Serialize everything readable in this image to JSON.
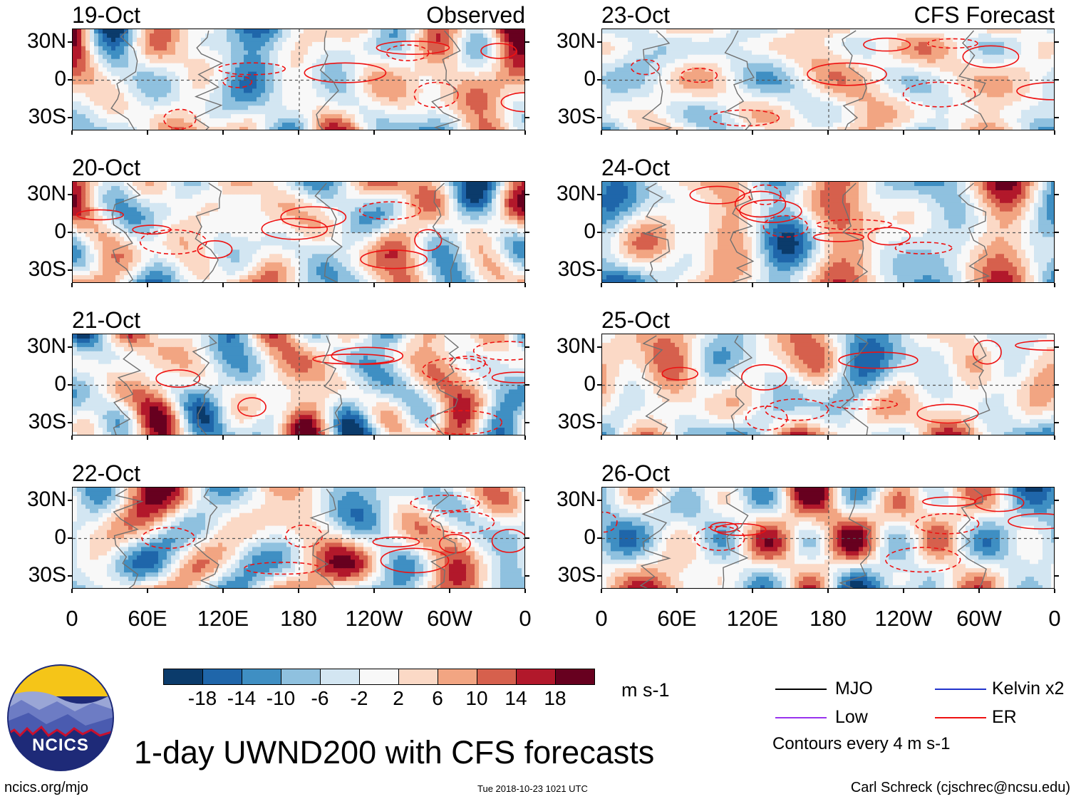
{
  "panels": [
    {
      "date": "19-Oct",
      "source": "Observed",
      "seed": 3
    },
    {
      "date": "20-Oct",
      "source": "",
      "seed": 7
    },
    {
      "date": "21-Oct",
      "source": "",
      "seed": 11
    },
    {
      "date": "22-Oct",
      "source": "",
      "seed": 17
    },
    {
      "date": "23-Oct",
      "source": "CFS Forecast",
      "seed": 23
    },
    {
      "date": "24-Oct",
      "source": "",
      "seed": 29
    },
    {
      "date": "25-Oct",
      "source": "",
      "seed": 31
    },
    {
      "date": "26-Oct",
      "source": "",
      "seed": 37
    }
  ],
  "lat_labels": [
    "30N",
    "0",
    "30S"
  ],
  "lon_labels": [
    "0",
    "60E",
    "120E",
    "180",
    "120W",
    "60W",
    "0"
  ],
  "colorbar": {
    "colors": [
      "#0b3b6b",
      "#1f66aa",
      "#3f8fc3",
      "#8fc1df",
      "#d3e6f2",
      "#f8f8f8",
      "#fbd9c6",
      "#f2a582",
      "#d6604d",
      "#b2182b",
      "#67001f"
    ],
    "labels": [
      "-18",
      "-14",
      "-10",
      "-6",
      "-2",
      "2",
      "6",
      "10",
      "14",
      "18"
    ],
    "units": "m s-1"
  },
  "legend": {
    "items": [
      {
        "label": "MJO",
        "color": "#000000"
      },
      {
        "label": "Kelvin x2",
        "color": "#2233cc"
      },
      {
        "label": "Low",
        "color": "#9933ee"
      },
      {
        "label": "ER",
        "color": "#ee1111"
      }
    ],
    "contour_note": "Contours every 4 m s-1"
  },
  "logo_text": "NCICS",
  "title": "1-day UWND200 with CFS forecasts",
  "footer": {
    "url": "ncics.org/mjo",
    "timestamp": "Tue 2018-10-23 1021 UTC",
    "credit": "Carl Schreck (cjschrec@ncsu.edu)"
  }
}
